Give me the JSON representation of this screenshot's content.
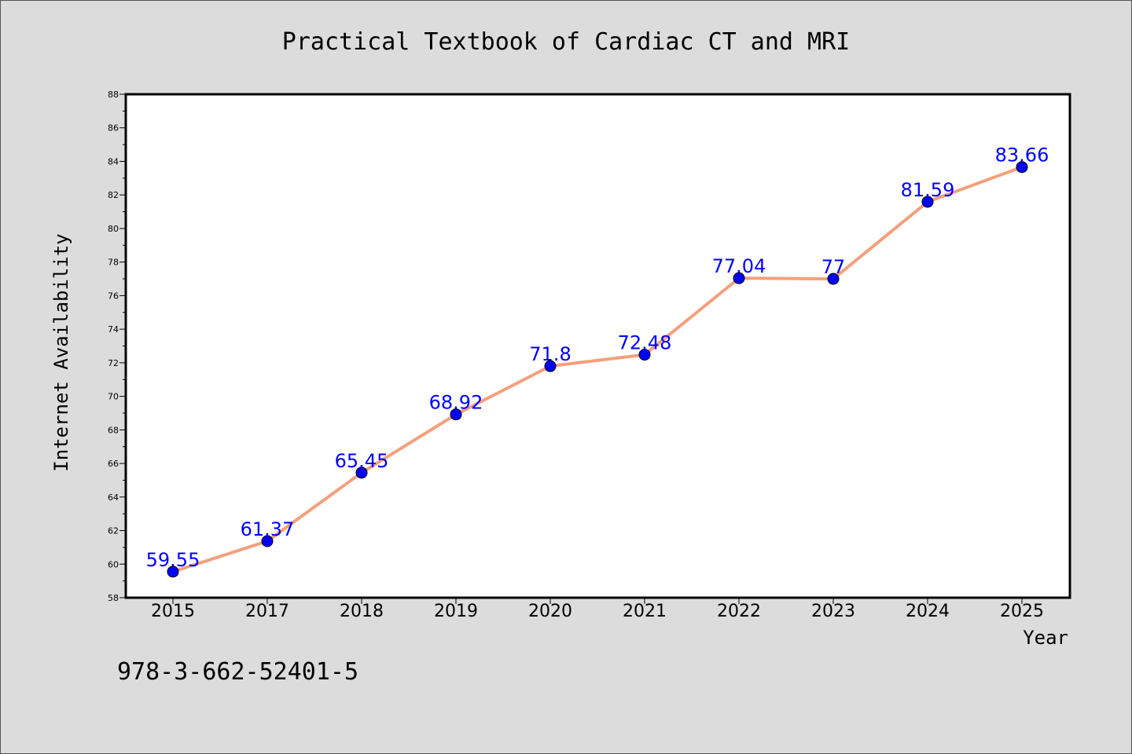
{
  "chart_data": {
    "type": "line",
    "title": "Practical Textbook of Cardiac CT and MRI",
    "xlabel": "Year",
    "ylabel": "Internet Availability",
    "categories": [
      "2015",
      "2017",
      "2018",
      "2019",
      "2020",
      "2021",
      "2022",
      "2023",
      "2024",
      "2025"
    ],
    "values": [
      59.55,
      61.37,
      65.45,
      68.92,
      71.8,
      72.48,
      77.04,
      77,
      81.59,
      83.66
    ],
    "data_labels": [
      "59.55",
      "61.37",
      "65.45",
      "68.92",
      "71.8",
      "72.48",
      "77.04",
      "77",
      "81.59",
      "83.66"
    ],
    "ylim": [
      58,
      88
    ],
    "yticks": [
      "58",
      "60",
      "62",
      "64",
      "66",
      "68",
      "70",
      "72",
      "74",
      "76",
      "78",
      "80",
      "82",
      "84",
      "86",
      "88"
    ],
    "grid": false,
    "legend": "none",
    "line_color": "#f4a07c",
    "marker_color": "#0000ff",
    "label_color": "#0000ff"
  },
  "footer_text": "978-3-662-52401-5"
}
